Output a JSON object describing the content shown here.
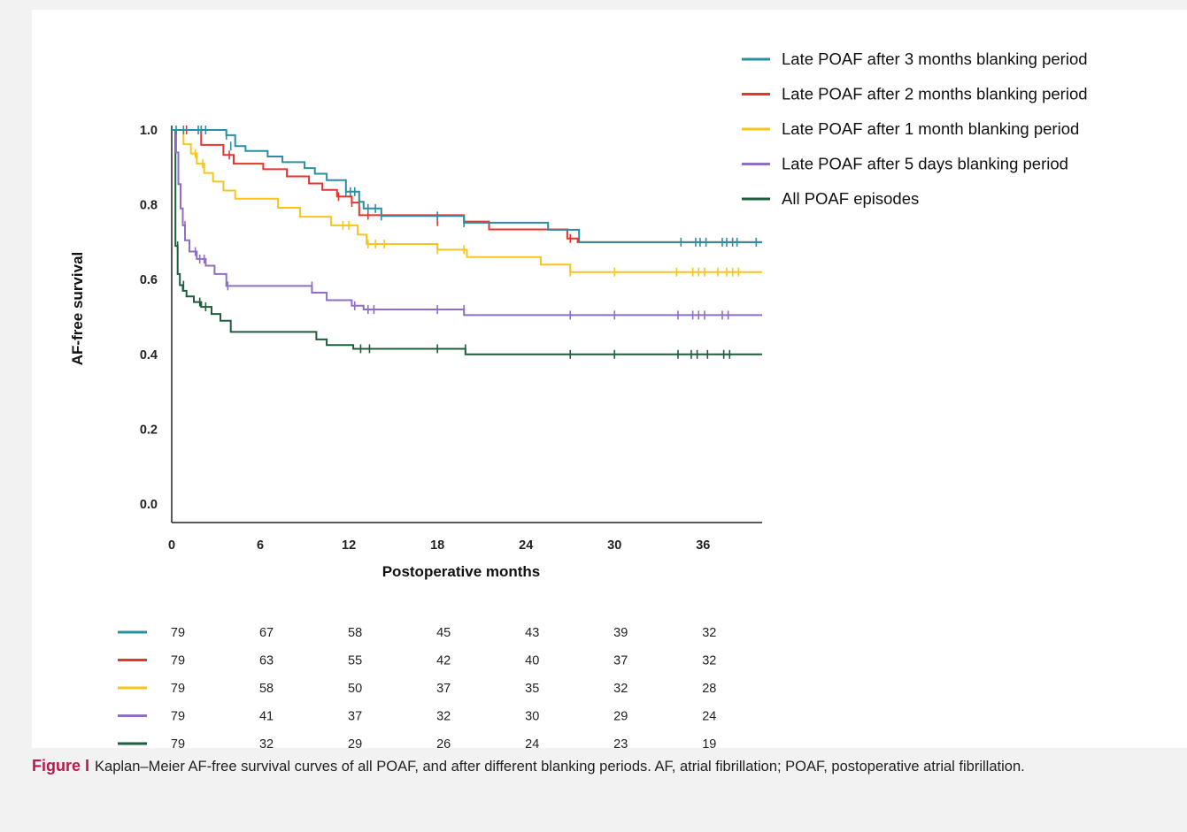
{
  "chart_data": {
    "type": "line",
    "title": "",
    "xlabel": "Postoperative months",
    "ylabel": "AF-free survival",
    "xlim": [
      0,
      40
    ],
    "ylim": [
      0,
      1.02
    ],
    "xticks": [
      0,
      6,
      12,
      18,
      24,
      30,
      36
    ],
    "yticks": [
      0.0,
      0.2,
      0.4,
      0.6,
      0.8,
      1.0
    ],
    "ytick_labels": [
      "0.0",
      "0.2",
      "0.4",
      "0.6",
      "0.8",
      "1.0"
    ],
    "grid": false,
    "legend_position": "top-right",
    "step": true,
    "series": [
      {
        "name": "Late POAF after 3 months blanking period",
        "color": "#2a8fa3",
        "x": [
          0,
          3.7,
          4.3,
          5,
          6.5,
          7.5,
          9,
          9.7,
          10.5,
          11.8,
          12.7,
          13,
          14.2,
          19.8,
          25.5,
          27.6,
          40
        ],
        "y": [
          1.0,
          0.986,
          0.957,
          0.944,
          0.929,
          0.914,
          0.898,
          0.883,
          0.866,
          0.835,
          0.808,
          0.79,
          0.77,
          0.752,
          0.733,
          0.7,
          0.7
        ],
        "censor_x": [
          0.3,
          0.8,
          1.8,
          2,
          2.3,
          3.7,
          4,
          11.8,
          12.1,
          12.4,
          12.7,
          13.3,
          13.8,
          14.2,
          18,
          19.8,
          34.5,
          35.5,
          35.8,
          36.2,
          37.3,
          37.6,
          38,
          38.3,
          39.6
        ],
        "censor_y": [
          1.0,
          1.0,
          1.0,
          1.0,
          1.0,
          0.986,
          0.957,
          0.835,
          0.835,
          0.835,
          0.808,
          0.79,
          0.79,
          0.77,
          0.77,
          0.752,
          0.7,
          0.7,
          0.7,
          0.7,
          0.7,
          0.7,
          0.7,
          0.7,
          0.7
        ]
      },
      {
        "name": "Late POAF after 2 months blanking period",
        "color": "#e8342c",
        "x": [
          0,
          2,
          3.5,
          4.2,
          6.2,
          7.8,
          9.3,
          10.2,
          11.2,
          12.2,
          12.7,
          19.8,
          21.5,
          26.8,
          27.5,
          40
        ],
        "y": [
          1.0,
          0.96,
          0.933,
          0.91,
          0.895,
          0.876,
          0.857,
          0.84,
          0.822,
          0.806,
          0.772,
          0.755,
          0.734,
          0.71,
          0.7,
          0.7
        ],
        "censor_x": [
          1,
          3.9,
          11.3,
          12.2,
          13.3,
          18,
          27
        ],
        "censor_y": [
          1.0,
          0.933,
          0.822,
          0.806,
          0.772,
          0.755,
          0.71
        ]
      },
      {
        "name": "Late POAF after 1 month blanking period",
        "color": "#f7c520",
        "x": [
          0,
          0.8,
          1.3,
          1.7,
          2.2,
          2.8,
          3.5,
          4.3,
          7.2,
          8.7,
          10.8,
          12.6,
          13.2,
          18,
          20,
          25,
          27,
          40
        ],
        "y": [
          1.0,
          0.962,
          0.937,
          0.91,
          0.885,
          0.862,
          0.838,
          0.816,
          0.792,
          0.768,
          0.745,
          0.72,
          0.695,
          0.68,
          0.66,
          0.64,
          0.62,
          0.62
        ],
        "censor_x": [
          1.6,
          2.1,
          11.6,
          12,
          13.3,
          13.8,
          14.4,
          18,
          19.8,
          27,
          30,
          34.2,
          35.3,
          35.7,
          36.1,
          37,
          37.6,
          38,
          38.4
        ],
        "censor_y": [
          0.937,
          0.91,
          0.745,
          0.745,
          0.695,
          0.695,
          0.695,
          0.68,
          0.68,
          0.62,
          0.62,
          0.62,
          0.62,
          0.62,
          0.62,
          0.62,
          0.62,
          0.62,
          0.62
        ]
      },
      {
        "name": "Late POAF after 5 days blanking period",
        "color": "#8f6ec4",
        "x": [
          0,
          0.3,
          0.45,
          0.6,
          0.75,
          0.9,
          1.2,
          1.7,
          2.3,
          2.9,
          3.7,
          9.5,
          10.5,
          12.2,
          13,
          19.8,
          40
        ],
        "y": [
          1.0,
          0.94,
          0.855,
          0.79,
          0.745,
          0.705,
          0.675,
          0.655,
          0.637,
          0.615,
          0.583,
          0.565,
          0.545,
          0.53,
          0.52,
          0.505,
          0.505
        ],
        "censor_x": [
          0.9,
          1.6,
          1.9,
          2.2,
          3.8,
          9.5,
          12.4,
          13.3,
          13.7,
          18,
          19.8,
          27,
          30,
          34.3,
          35.3,
          35.7,
          36.1,
          37.3,
          37.7
        ],
        "censor_y": [
          0.745,
          0.675,
          0.655,
          0.655,
          0.583,
          0.583,
          0.53,
          0.52,
          0.52,
          0.52,
          0.52,
          0.505,
          0.505,
          0.505,
          0.505,
          0.505,
          0.505,
          0.505,
          0.505
        ]
      },
      {
        "name": "All POAF episodes",
        "color": "#1f5e3c",
        "x": [
          0,
          0.25,
          0.4,
          0.55,
          0.75,
          1,
          1.5,
          2,
          2.7,
          3.3,
          4,
          9.8,
          10.5,
          12.3,
          19.9,
          40
        ],
        "y": [
          1.0,
          0.69,
          0.615,
          0.585,
          0.57,
          0.555,
          0.54,
          0.527,
          0.508,
          0.49,
          0.46,
          0.44,
          0.425,
          0.415,
          0.4,
          0.4
        ],
        "censor_x": [
          0.4,
          0.8,
          1.9,
          2.3,
          12.8,
          13.4,
          18,
          19.9,
          27,
          30,
          34.3,
          35.2,
          35.6,
          36.3,
          37.4,
          37.8
        ],
        "censor_y": [
          0.69,
          0.585,
          0.54,
          0.527,
          0.415,
          0.415,
          0.415,
          0.415,
          0.4,
          0.4,
          0.4,
          0.4,
          0.4,
          0.4,
          0.4,
          0.4
        ]
      }
    ],
    "risk_table": {
      "times": [
        0,
        6,
        12,
        18,
        24,
        30,
        36
      ],
      "rows": [
        [
          "79",
          "67",
          "58",
          "45",
          "43",
          "39",
          "32"
        ],
        [
          "79",
          "63",
          "55",
          "42",
          "40",
          "37",
          "32"
        ],
        [
          "79",
          "58",
          "50",
          "37",
          "35",
          "32",
          "28"
        ],
        [
          "79",
          "41",
          "37",
          "32",
          "30",
          "29",
          "24"
        ],
        [
          "79",
          "32",
          "29",
          "26",
          "24",
          "23",
          "19"
        ]
      ]
    }
  },
  "caption": {
    "label": "Figure I",
    "text": "Kaplan–Meier AF-free survival curves of all POAF, and after different blanking periods. AF, atrial fibrillation; POAF, postoperative atrial fibrillation."
  }
}
